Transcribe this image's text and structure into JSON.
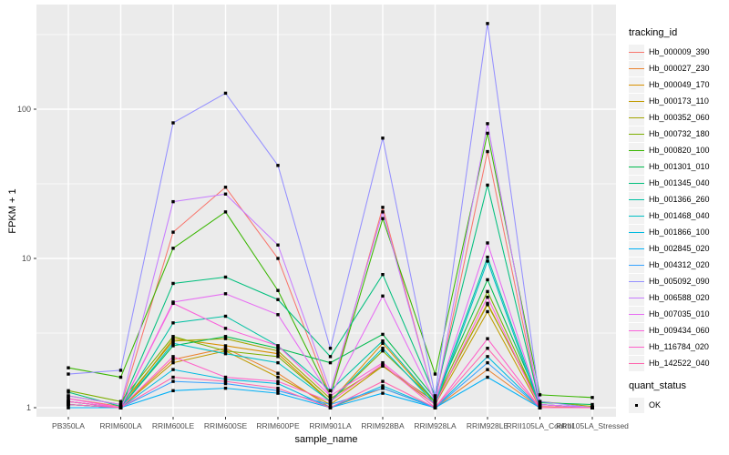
{
  "figure": {
    "background": "#FFFFFF",
    "panel_background": "#EBEBEB",
    "gridline_color": "#FFFFFF",
    "tick_color": "#333333",
    "tick_label_color": "#4D4D4D",
    "point_color": "#000000",
    "legend_key_background": "#F2F2F2"
  },
  "legend": {
    "tracking_title": "tracking_id",
    "quant_title": "quant_status",
    "quant_items": [
      {
        "label": "OK",
        "marker": "black-filled-square"
      }
    ]
  },
  "chart_data": {
    "type": "line",
    "title": "",
    "xlabel": "sample_name",
    "ylabel": "FPKM + 1",
    "y_scale": "log10",
    "y_ticks": [
      1,
      10,
      100
    ],
    "y_tick_labels": [
      "1",
      "10",
      "100"
    ],
    "ylim": [
      0.87,
      505
    ],
    "grid": true,
    "legend_position": "right",
    "point_shape": "filled-square",
    "quant_status": "OK",
    "categories": [
      "PB350LA",
      "RRIM600LA",
      "RRIM600LE",
      "RRIM600SE",
      "RRIM600PE",
      "RRIM901LA",
      "RRIM928BA",
      "RRIM928LA",
      "RRIM928LE",
      "RRII105LA_Control",
      "RRII105LA_Stressed"
    ],
    "series": [
      {
        "name": "Hb_000009_390",
        "color": "#F8766D",
        "values": [
          1.15,
          1.02,
          15,
          30,
          10,
          1.2,
          22,
          1.1,
          52,
          1.02,
          1.0
        ]
      },
      {
        "name": "Hb_000027_230",
        "color": "#EA8331",
        "values": [
          1.1,
          1.0,
          2.1,
          2.5,
          1.7,
          1.0,
          1.35,
          1.0,
          1.8,
          1.0,
          1.0
        ]
      },
      {
        "name": "Hb_000049_170",
        "color": "#D89000",
        "values": [
          1.05,
          1.0,
          2.9,
          2.6,
          2.3,
          1.1,
          2.7,
          1.08,
          5.0,
          1.05,
          1.0
        ]
      },
      {
        "name": "Hb_000173_110",
        "color": "#C09B00",
        "values": [
          1.1,
          1.0,
          2.0,
          2.4,
          1.6,
          1.05,
          1.9,
          1.05,
          4.4,
          1.0,
          1.0
        ]
      },
      {
        "name": "Hb_000352_060",
        "color": "#A3A500",
        "values": [
          1.2,
          1.05,
          2.8,
          2.9,
          2.4,
          1.15,
          1.9,
          1.1,
          4.9,
          1.1,
          1.02
        ]
      },
      {
        "name": "Hb_000732_180",
        "color": "#7CAE00",
        "values": [
          1.3,
          1.1,
          3.0,
          2.4,
          2.2,
          1.1,
          2.4,
          1.1,
          6.0,
          1.05,
          1.0
        ]
      },
      {
        "name": "Hb_000820_100",
        "color": "#39B600",
        "values": [
          1.85,
          1.6,
          11.7,
          20.5,
          6.1,
          1.2,
          18.5,
          1.68,
          69,
          1.22,
          1.17
        ]
      },
      {
        "name": "Hb_001301_010",
        "color": "#00BB4E",
        "values": [
          1.05,
          1.0,
          2.6,
          3.0,
          2.5,
          2.0,
          3.1,
          1.15,
          7.2,
          1.08,
          1.05
        ]
      },
      {
        "name": "Hb_001345_040",
        "color": "#00BF7D",
        "values": [
          1.27,
          1.02,
          6.8,
          7.5,
          5.3,
          2.2,
          7.8,
          1.2,
          31,
          1.05,
          1.0
        ]
      },
      {
        "name": "Hb_001366_260",
        "color": "#00C1A3",
        "values": [
          1.1,
          1.0,
          3.7,
          4.1,
          2.6,
          1.3,
          2.8,
          1.1,
          10.2,
          1.05,
          1.0
        ]
      },
      {
        "name": "Hb_001468_040",
        "color": "#00BFC4",
        "values": [
          1.05,
          1.0,
          2.7,
          2.3,
          2.0,
          1.1,
          2.5,
          1.05,
          9.6,
          1.0,
          1.0
        ]
      },
      {
        "name": "Hb_001866_100",
        "color": "#00BAE0",
        "values": [
          1.0,
          1.0,
          1.8,
          1.55,
          1.45,
          1.0,
          1.4,
          1.0,
          2.2,
          1.0,
          1.0
        ]
      },
      {
        "name": "Hb_002845_020",
        "color": "#00B0F6",
        "values": [
          1.0,
          1.0,
          1.3,
          1.35,
          1.25,
          1.0,
          1.25,
          1.0,
          1.6,
          1.0,
          1.0
        ]
      },
      {
        "name": "Hb_004312_020",
        "color": "#35A2FF",
        "values": [
          1.05,
          1.0,
          1.5,
          1.45,
          1.3,
          1.05,
          1.35,
          1.0,
          2.0,
          1.0,
          1.0
        ]
      },
      {
        "name": "Hb_005092_090",
        "color": "#9590FF",
        "values": [
          1.68,
          1.78,
          81,
          128,
          42,
          2.5,
          64,
          1.2,
          375,
          1.1,
          1.0
        ]
      },
      {
        "name": "Hb_006588_020",
        "color": "#C77CFF",
        "values": [
          1.2,
          1.05,
          24,
          27,
          12.3,
          1.3,
          20.5,
          1.1,
          80,
          1.05,
          1.0
        ]
      },
      {
        "name": "Hb_007035_010",
        "color": "#E76BF3",
        "values": [
          1.1,
          1.0,
          5.1,
          5.8,
          4.2,
          1.2,
          5.6,
          1.1,
          12.7,
          1.05,
          1.0
        ]
      },
      {
        "name": "Hb_009434_060",
        "color": "#FA62DB",
        "values": [
          1.15,
          1.0,
          5.0,
          3.4,
          2.6,
          1.2,
          2.0,
          1.05,
          5.5,
          1.0,
          1.0
        ]
      },
      {
        "name": "Hb_116784_020",
        "color": "#FF61C9",
        "values": [
          1.1,
          1.0,
          2.2,
          1.6,
          1.5,
          1.1,
          1.95,
          1.0,
          2.9,
          1.0,
          1.0
        ]
      },
      {
        "name": "Hb_142522_040",
        "color": "#FF65AE",
        "values": [
          1.05,
          1.0,
          1.6,
          1.5,
          1.35,
          1.0,
          1.5,
          1.0,
          2.5,
          1.0,
          1.0
        ]
      }
    ]
  }
}
